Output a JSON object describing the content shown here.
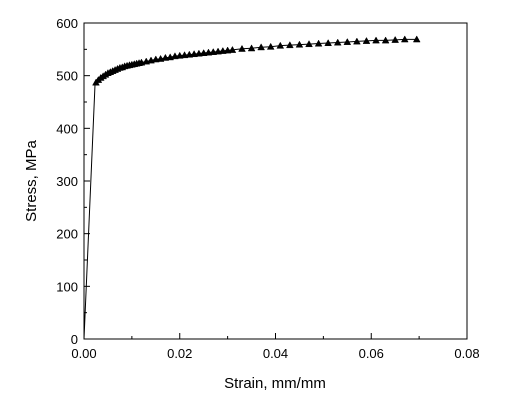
{
  "chart_data": {
    "type": "line",
    "xlabel": "Strain, mm/mm",
    "ylabel": "Stress, MPa",
    "xlim": [
      0.0,
      0.08
    ],
    "ylim": [
      0,
      600
    ],
    "x_ticks": [
      "0.00",
      "0.02",
      "0.04",
      "0.06",
      "0.08"
    ],
    "y_ticks": [
      "0",
      "100",
      "200",
      "300",
      "400",
      "500",
      "600"
    ],
    "grid": false,
    "marker": "triangle",
    "line_points": [
      {
        "x": 0.0,
        "y": 0
      },
      {
        "x": 0.0023,
        "y": 483
      },
      {
        "x": 0.0025,
        "y": 487
      }
    ],
    "series": [
      {
        "x": [
          0.0025,
          0.003,
          0.0035,
          0.004,
          0.0045,
          0.005,
          0.0055,
          0.006,
          0.0065,
          0.007,
          0.0075,
          0.008,
          0.0085,
          0.009,
          0.0095,
          0.01,
          0.0105,
          0.011,
          0.0115,
          0.012,
          0.013,
          0.014,
          0.015,
          0.016,
          0.017,
          0.018,
          0.019,
          0.02,
          0.021,
          0.022,
          0.023,
          0.024,
          0.025,
          0.026,
          0.027,
          0.028,
          0.029,
          0.03,
          0.031,
          0.033,
          0.035,
          0.037,
          0.039,
          0.041,
          0.043,
          0.045,
          0.047,
          0.049,
          0.051,
          0.053,
          0.055,
          0.057,
          0.059,
          0.061,
          0.063,
          0.065,
          0.067,
          0.0695
        ],
        "y": [
          487,
          492,
          496,
          499,
          502,
          505,
          507,
          509,
          511,
          513,
          515,
          516,
          518,
          519,
          520,
          521,
          522,
          523,
          524,
          525,
          527,
          529,
          531,
          532,
          534,
          535,
          537,
          538,
          539,
          540,
          541,
          542,
          543,
          544,
          545,
          546,
          547,
          548,
          549,
          551,
          552,
          554,
          555,
          557,
          558,
          559,
          560,
          561,
          562,
          563,
          564,
          565,
          566,
          567,
          567,
          568,
          569,
          569
        ]
      }
    ]
  }
}
